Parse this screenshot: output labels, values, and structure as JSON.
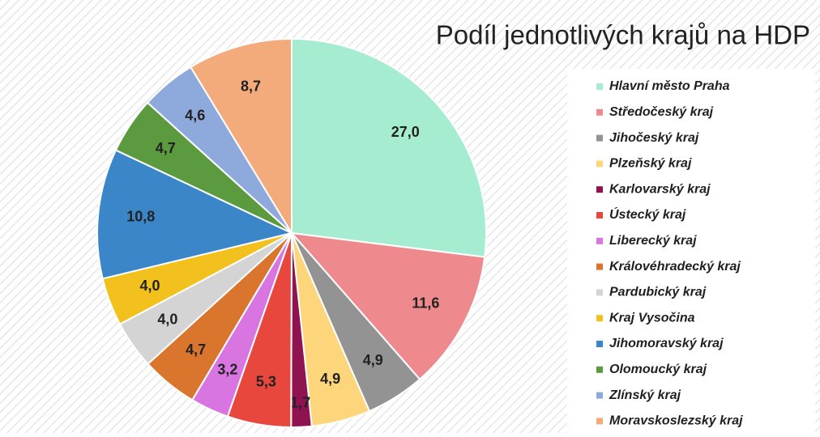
{
  "chart_data": {
    "type": "pie",
    "title": "Podíl jednotlivých krajů na HDP",
    "categories": [
      "Hlavní město Praha",
      "Středočeský kraj",
      "Jihočeský kraj",
      "Plzeňský kraj",
      "Karlovarský kraj",
      "Ústecký kraj",
      "Liberecký kraj",
      "Královéhradecký kraj",
      "Pardubický kraj",
      "Kraj Vysočina",
      "Jihomoravský kraj",
      "Olomoucký kraj",
      "Zlínský kraj",
      "Moravskoslezský kraj"
    ],
    "values": [
      27.0,
      11.6,
      4.9,
      4.9,
      1.7,
      5.3,
      3.2,
      4.7,
      4.0,
      4.0,
      10.8,
      4.7,
      4.6,
      8.7
    ],
    "value_labels": [
      "27,0",
      "11,6",
      "4,9",
      "4,9",
      "1,7",
      "5,3",
      "3,2",
      "4,7",
      "4,0",
      "4,0",
      "10,8",
      "4,7",
      "4,6",
      "8,7"
    ],
    "colors": [
      "#a6ecd0",
      "#ee8a8e",
      "#939393",
      "#fdd57b",
      "#8e1350",
      "#e8473d",
      "#d975e0",
      "#d9752c",
      "#d4d4d4",
      "#f2c11d",
      "#3a86c8",
      "#5b9a3e",
      "#8ea9dc",
      "#f4ab7c"
    ],
    "legend": "right"
  }
}
